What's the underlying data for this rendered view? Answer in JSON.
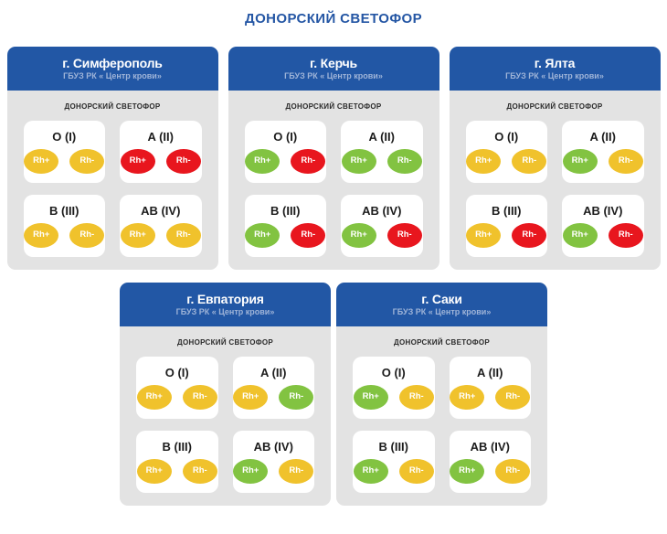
{
  "page": {
    "title": "ДОНОРСКИЙ СВЕТОФОР"
  },
  "labels": {
    "rh_plus": "Rh+",
    "rh_minus": "Rh-"
  },
  "colors": {
    "title_blue": "#2456a4",
    "header_blue": "#2257a5",
    "card_body_gray": "#e3e3e3",
    "status_yellow": "#f0c22c",
    "status_green": "#82c341",
    "status_red": "#e8161e"
  },
  "cards": [
    {
      "city": "г. Симферополь",
      "org": "ГБУЗ РК « Центр крови»",
      "board_label": "ДОНОРСКИЙ СВЕТОФОР",
      "groups": [
        {
          "label": "O (I)",
          "rh_plus": "yellow",
          "rh_minus": "yellow"
        },
        {
          "label": "A (II)",
          "rh_plus": "red",
          "rh_minus": "red"
        },
        {
          "label": "B (III)",
          "rh_plus": "yellow",
          "rh_minus": "yellow"
        },
        {
          "label": "AB (IV)",
          "rh_plus": "yellow",
          "rh_minus": "yellow"
        }
      ]
    },
    {
      "city": "г. Керчь",
      "org": "ГБУЗ РК « Центр крови»",
      "board_label": "ДОНОРСКИЙ СВЕТОФОР",
      "groups": [
        {
          "label": "O (I)",
          "rh_plus": "green",
          "rh_minus": "red"
        },
        {
          "label": "A (II)",
          "rh_plus": "green",
          "rh_minus": "green"
        },
        {
          "label": "B (III)",
          "rh_plus": "green",
          "rh_minus": "red"
        },
        {
          "label": "AB (IV)",
          "rh_plus": "green",
          "rh_minus": "red"
        }
      ]
    },
    {
      "city": "г. Ялта",
      "org": "ГБУЗ РК « Центр крови»",
      "board_label": "ДОНОРСКИЙ СВЕТОФОР",
      "groups": [
        {
          "label": "O (I)",
          "rh_plus": "yellow",
          "rh_minus": "yellow"
        },
        {
          "label": "A (II)",
          "rh_plus": "green",
          "rh_minus": "yellow"
        },
        {
          "label": "B (III)",
          "rh_plus": "yellow",
          "rh_minus": "red"
        },
        {
          "label": "AB (IV)",
          "rh_plus": "green",
          "rh_minus": "red"
        }
      ]
    },
    {
      "city": "г. Евпатория",
      "org": "ГБУЗ РК « Центр крови»",
      "board_label": "ДОНОРСКИЙ СВЕТОФОР",
      "groups": [
        {
          "label": "O (I)",
          "rh_plus": "yellow",
          "rh_minus": "yellow"
        },
        {
          "label": "A (II)",
          "rh_plus": "yellow",
          "rh_minus": "green"
        },
        {
          "label": "B (III)",
          "rh_plus": "yellow",
          "rh_minus": "yellow"
        },
        {
          "label": "AB (IV)",
          "rh_plus": "green",
          "rh_minus": "yellow"
        }
      ]
    },
    {
      "city": "г. Саки",
      "org": "ГБУЗ РК « Центр крови»",
      "board_label": "ДОНОРСКИЙ СВЕТОФОР",
      "groups": [
        {
          "label": "O (I)",
          "rh_plus": "green",
          "rh_minus": "yellow"
        },
        {
          "label": "A (II)",
          "rh_plus": "yellow",
          "rh_minus": "yellow"
        },
        {
          "label": "B (III)",
          "rh_plus": "green",
          "rh_minus": "yellow"
        },
        {
          "label": "AB (IV)",
          "rh_plus": "green",
          "rh_minus": "yellow"
        }
      ]
    }
  ]
}
